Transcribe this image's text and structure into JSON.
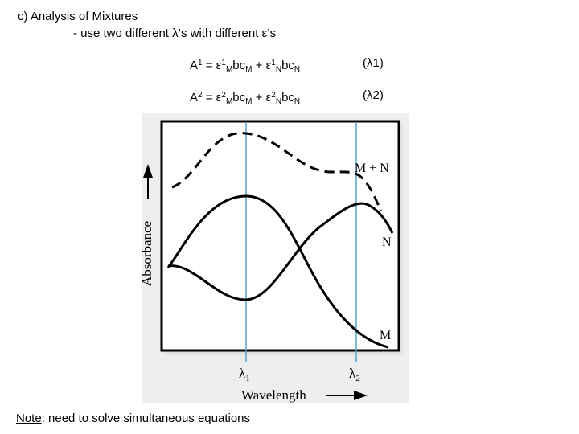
{
  "header": {
    "title": "c) Analysis of Mixtures",
    "subtitle": "- use two different λ’s with different ε’s"
  },
  "equations": {
    "eq1": {
      "lhs": "A",
      "lhs_sup": "1",
      "eq": " = ε",
      "t1_sup": "1",
      "t1_sub": "M",
      "t1_mid": "bc",
      "t1_sub2": "M",
      "plus": " + ε",
      "t2_sup": "1",
      "t2_sub": "N",
      "t2_mid": "bc",
      "t2_sub2": "N",
      "wavelength": "(λ1)"
    },
    "eq2": {
      "lhs": "A",
      "lhs_sup": "2",
      "eq": " = ε",
      "t1_sup": "2",
      "t1_sub": "M",
      "t1_mid": "bc",
      "t1_sub2": "M",
      "plus": " + ε",
      "t2_sup": "2",
      "t2_sub": "N",
      "t2_mid": "bc",
      "t2_sub2": "N",
      "wavelength": "(λ2)"
    }
  },
  "diagram": {
    "y_axis_label": "Absorbance",
    "x_axis_label": "Wavelength",
    "curve_labels": {
      "mixture": "M + N",
      "n": "N",
      "m": "M"
    },
    "markers": {
      "lambda1": "λ",
      "lambda1_sub": "1",
      "lambda2": "λ",
      "lambda2_sub": "2"
    },
    "colors": {
      "marker_line": "#5aa0c8",
      "curve": "#000000",
      "frame": "#000000"
    }
  },
  "note": {
    "label": "Note",
    "text": ": need to solve simultaneous equations"
  }
}
